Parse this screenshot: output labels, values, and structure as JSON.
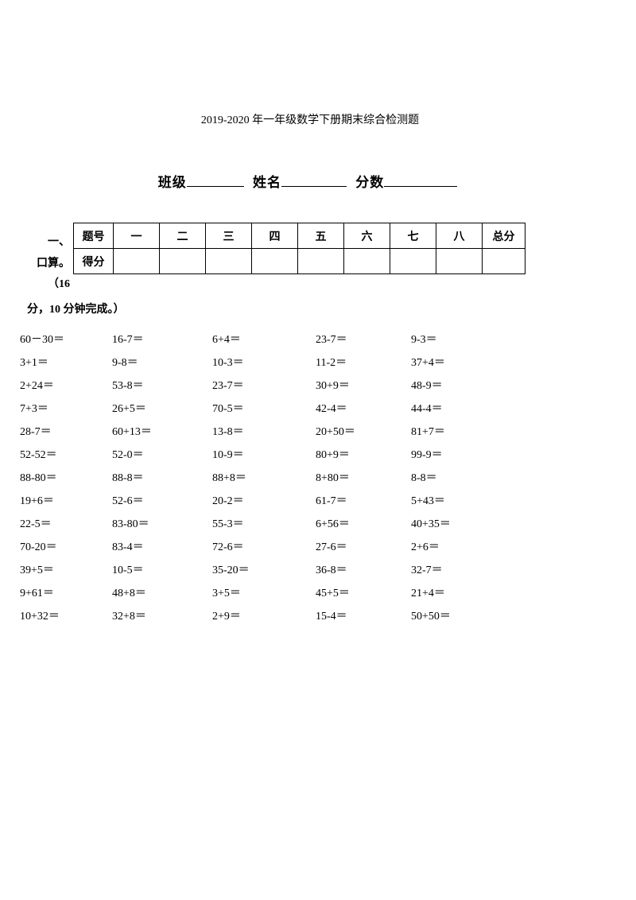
{
  "title": "2019-2020 年一年级数学下册期末综合检测题",
  "info": {
    "class_label": "班级",
    "name_label": "姓名",
    "score_label": "分数",
    "underline1_width": 72,
    "underline2_width": 82,
    "underline3_width": 92
  },
  "section1": {
    "prefix_line1": "一、",
    "prefix_line2": "口算。",
    "prefix_line3": "（16",
    "suffix": "分，10 分钟完成。）"
  },
  "score_table": {
    "header_label": "题号",
    "columns": [
      "一",
      "二",
      "三",
      "四",
      "五",
      "六",
      "七",
      "八",
      "总分"
    ],
    "row_label": "得分"
  },
  "calc": {
    "rows": [
      [
        "60－30＝",
        "16-7＝",
        "6+4＝",
        "23-7＝",
        "9-3＝"
      ],
      [
        "3+1＝",
        "9-8＝",
        "10-3＝",
        "11-2＝",
        "37+4＝"
      ],
      [
        "2+24＝",
        "53-8＝",
        "23-7＝",
        "30+9＝",
        "48-9＝"
      ],
      [
        "7+3＝",
        "26+5＝",
        "70-5＝",
        "42-4＝",
        "44-4＝"
      ],
      [
        "28-7＝",
        "60+13＝",
        "13-8＝",
        "20+50＝",
        "81+7＝"
      ],
      [
        "52-52＝",
        "52-0＝",
        "10-9＝",
        "80+9＝",
        "99-9＝"
      ],
      [
        "88-80＝",
        "88-8＝",
        "88+8＝",
        "8+80＝",
        "8-8＝"
      ],
      [
        "19+6＝",
        "52-6＝",
        "20-2＝",
        "61-7＝",
        "5+43＝"
      ],
      [
        "22-5＝",
        "83-80＝",
        "55-3＝",
        "6+56＝",
        "40+35＝"
      ],
      [
        "70-20＝",
        "83-4＝",
        "72-6＝",
        "27-6＝",
        "2+6＝"
      ],
      [
        "39+5＝",
        "10-5＝",
        "35-20＝",
        "36-8＝",
        "32-7＝"
      ],
      [
        "9+61＝",
        "48+8＝",
        "3+5＝",
        "45+5＝",
        "21+4＝"
      ],
      [
        "10+32＝",
        "32+8＝",
        "2+9＝",
        "15-4＝",
        "50+50＝"
      ]
    ]
  },
  "colors": {
    "background": "#ffffff",
    "text": "#000000",
    "border": "#000000"
  }
}
